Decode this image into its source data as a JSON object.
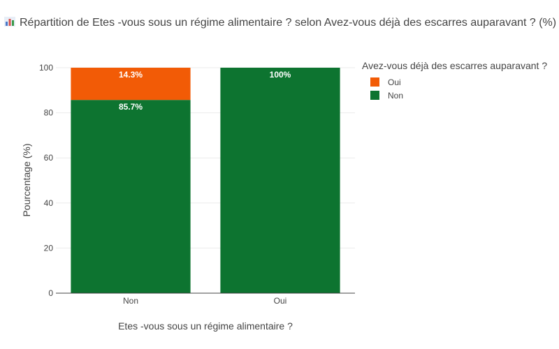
{
  "title": "Répartition de Etes -vous sous un régime alimentaire ? selon Avez-vous déjà des escarres auparavant ? (%)",
  "title_icon": "bar-chart-icon",
  "chart_data": {
    "type": "bar",
    "stacked": true,
    "categories": [
      "Non",
      "Oui"
    ],
    "series": [
      {
        "name": "Non",
        "values": [
          85.7,
          100
        ],
        "labels": [
          "85.7%",
          "100%"
        ],
        "color": "#0d7430"
      },
      {
        "name": "Oui",
        "values": [
          14.3,
          0
        ],
        "labels": [
          "14.3%",
          ""
        ],
        "color": "#f25b06"
      }
    ],
    "xlabel": "Etes -vous sous un régime alimentaire ?",
    "ylabel": "Pourcentage (%)",
    "ylim": [
      0,
      100
    ],
    "yticks": [
      0,
      20,
      40,
      60,
      80,
      100
    ],
    "grid": true,
    "legend": {
      "title": "Avez-vous déjà des escarres auparavant ?",
      "placement": "top-right",
      "items": [
        {
          "label": "Oui",
          "color": "#f25b06"
        },
        {
          "label": "Non",
          "color": "#0d7430"
        }
      ]
    }
  }
}
